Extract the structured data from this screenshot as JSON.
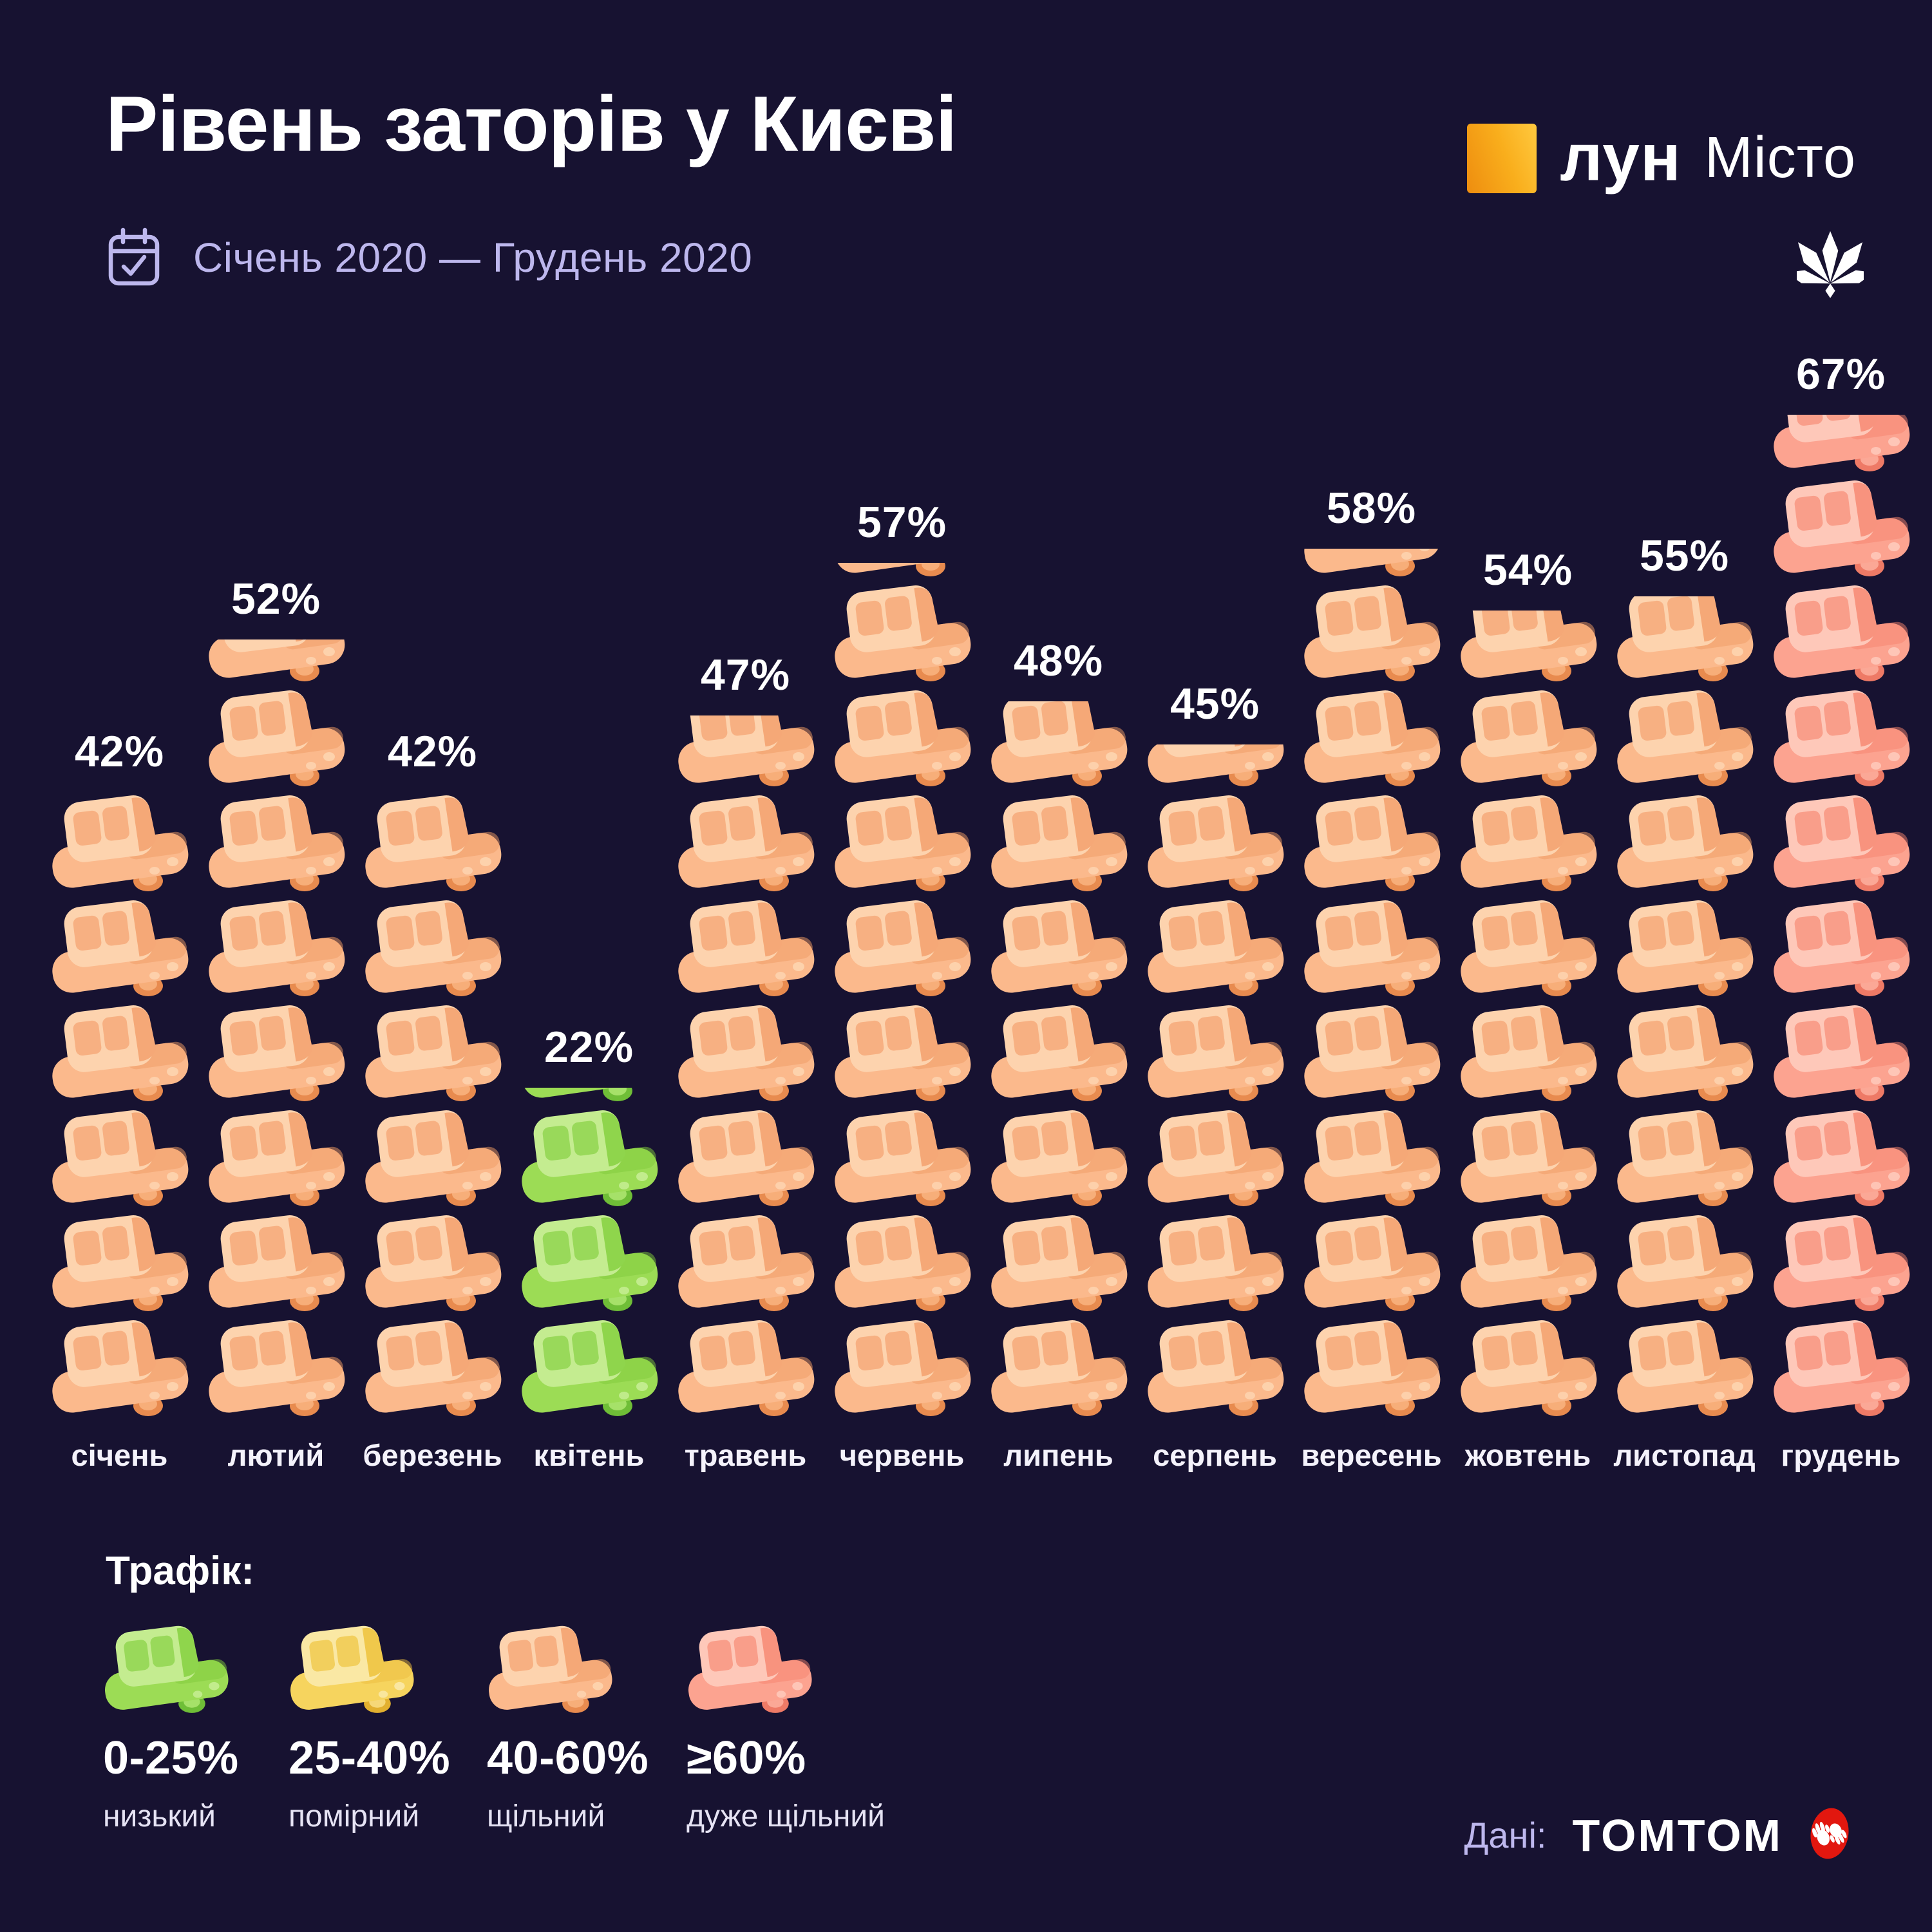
{
  "title": "Рівень заторів у Києві",
  "period": "Січень 2020 — Грудень 2020",
  "brand": {
    "name": "лун",
    "suffix": "Місто"
  },
  "source": {
    "label": "Дані:",
    "name": "TOMTOM"
  },
  "legend": {
    "heading": "Трафік:",
    "items": [
      {
        "range": "0-25%",
        "label": "низький",
        "level": "low",
        "color": "#9cdc55"
      },
      {
        "range": "25-40%",
        "label": "помірний",
        "level": "moderate",
        "color": "#f6d45e"
      },
      {
        "range": "40-60%",
        "label": "щільний",
        "level": "dense",
        "color": "#fbb98c"
      },
      {
        "range": "≥60%",
        "label": "дуже щільний",
        "level": "very_dense",
        "color": "#fca390"
      }
    ]
  },
  "chart_data": {
    "type": "pictogram-bar",
    "title": "Рівень заторів у Києві",
    "subtitle": "Січень 2020 — Грудень 2020",
    "unit": "%",
    "percent_per_car": 7,
    "categories": [
      "січень",
      "лютий",
      "березень",
      "квітень",
      "травень",
      "червень",
      "липень",
      "серпень",
      "вересень",
      "жовтень",
      "листопад",
      "грудень"
    ],
    "values": [
      42,
      52,
      42,
      22,
      47,
      57,
      48,
      45,
      58,
      54,
      55,
      67
    ],
    "levels": [
      "dense",
      "dense",
      "dense",
      "low",
      "dense",
      "dense",
      "dense",
      "dense",
      "dense",
      "dense",
      "dense",
      "very_dense"
    ],
    "level_colors": {
      "low": "#9cdc55",
      "moderate": "#f6d45e",
      "dense": "#fbb98c",
      "very_dense": "#fca390"
    },
    "legend_position": "bottom-left",
    "grid": false
  }
}
